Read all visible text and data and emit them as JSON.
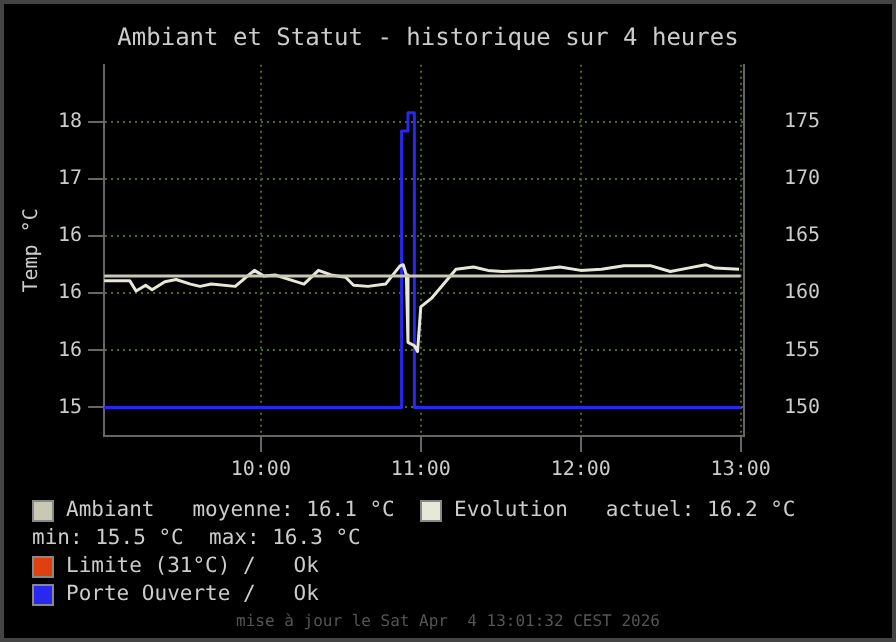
{
  "chart_data": {
    "type": "line",
    "title": "Ambiant et Statut - historique sur 4 heures",
    "ylabel": "Temp °C",
    "xlim": [
      9.02,
      13.02
    ],
    "xticks": [
      {
        "value": 10,
        "label": "10:00"
      },
      {
        "value": 11,
        "label": "11:00"
      },
      {
        "value": 12,
        "label": "12:00"
      },
      {
        "value": 13,
        "label": "13:00"
      }
    ],
    "ylim": [
      14.75,
      18.0
    ],
    "yticks": [
      15,
      {
        "value": 15.5,
        "label": "16"
      },
      16,
      {
        "value": 16.5,
        "label": "16"
      },
      17,
      {
        "value": 17.5,
        "label": "18"
      }
    ],
    "y2lim": [
      147.5,
      180
    ],
    "y2ticks": [
      150,
      155,
      160,
      165,
      170,
      175
    ],
    "grid": true,
    "legend": "bottom",
    "marker": "none",
    "line_style": "solid",
    "series": [
      {
        "name": "Ambiant",
        "color": "#c8c8b4",
        "x": [
          9.02,
          13.0
        ],
        "values": [
          16.15,
          16.15
        ]
      },
      {
        "name": "Evolution",
        "color": "#e8e8d8",
        "x": [
          9.02,
          9.18,
          9.22,
          9.28,
          9.32,
          9.4,
          9.47,
          9.56,
          9.62,
          9.69,
          9.84,
          9.89,
          9.96,
          10.02,
          10.09,
          10.2,
          10.27,
          10.36,
          10.44,
          10.53,
          10.58,
          10.67,
          10.78,
          10.87,
          10.89,
          10.91,
          10.92,
          10.96,
          10.98,
          11.0,
          11.07,
          11.16,
          11.22,
          11.33,
          11.42,
          11.51,
          11.69,
          11.87,
          12.0,
          12.13,
          12.27,
          12.44,
          12.56,
          12.67,
          12.78,
          12.84,
          12.99
        ],
        "values": [
          16.11,
          16.11,
          16.02,
          16.07,
          16.03,
          16.1,
          16.12,
          16.08,
          16.06,
          16.08,
          16.06,
          16.12,
          16.2,
          16.15,
          16.16,
          16.11,
          16.08,
          16.2,
          16.16,
          16.14,
          16.07,
          16.06,
          16.08,
          16.24,
          16.25,
          16.16,
          15.57,
          15.54,
          15.49,
          15.88,
          15.96,
          16.11,
          16.21,
          16.23,
          16.2,
          16.19,
          16.2,
          16.23,
          16.2,
          16.21,
          16.24,
          16.24,
          16.19,
          16.22,
          16.25,
          16.22,
          16.21
        ]
      },
      {
        "name": "Limite (31°C) /   Ok",
        "color": "#e04010"
      },
      {
        "name": "Porte Ouverte /   Ok",
        "color": "#2828f0",
        "type": "step",
        "x": [
          9.02,
          10.88,
          10.92,
          10.96,
          13.0
        ],
        "values": [
          15,
          17.42,
          17.58,
          15,
          15
        ]
      }
    ],
    "annotations": [
      "moyenne: 16.1 °C",
      "actuel: 16.2 °C",
      "min: 15.5 °C  max: 16.3 °C",
      "mise à jour le Sat Apr  4 13:01:32 CEST 2026"
    ]
  }
}
